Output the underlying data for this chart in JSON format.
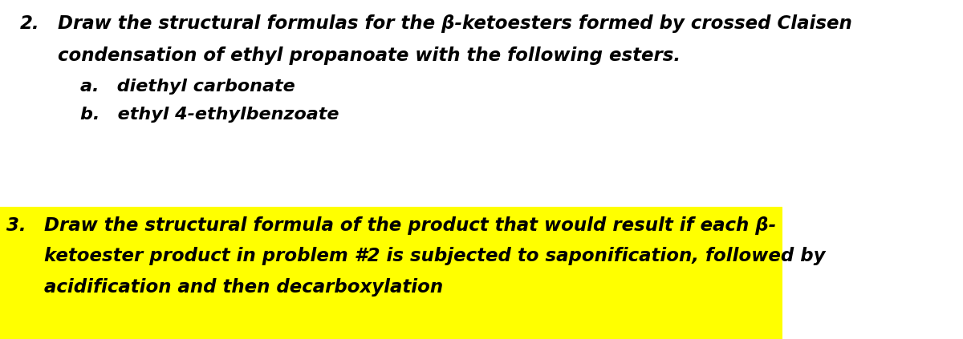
{
  "background_color": "#ffffff",
  "highlight_color": "#ffff00",
  "text_color": "#000000",
  "figsize": [
    12.0,
    4.23
  ],
  "dpi": 100,
  "q2_number": "2.",
  "q2_line1": "Draw the structural formulas for the β-ketoesters formed by crossed Claisen",
  "q2_line2": "condensation of ethyl propanoate with the following esters.",
  "q2_a": "a.  diethyl carbonate",
  "q2_b": "b.  ethyl 4-ethylbenzoate",
  "q3_number": "3.",
  "q3_line1": "Draw the structural formula of the product that would result if each β-",
  "q3_line2": "ketoester product in problem #2 is subjected to saponification, followed by",
  "q3_line3": "acidification and then decarboxylation",
  "font_size_main": 16.5,
  "font_size_sub": 16.0,
  "font_weight": "bold",
  "font_style": "italic",
  "font_family": "DejaVu Sans"
}
